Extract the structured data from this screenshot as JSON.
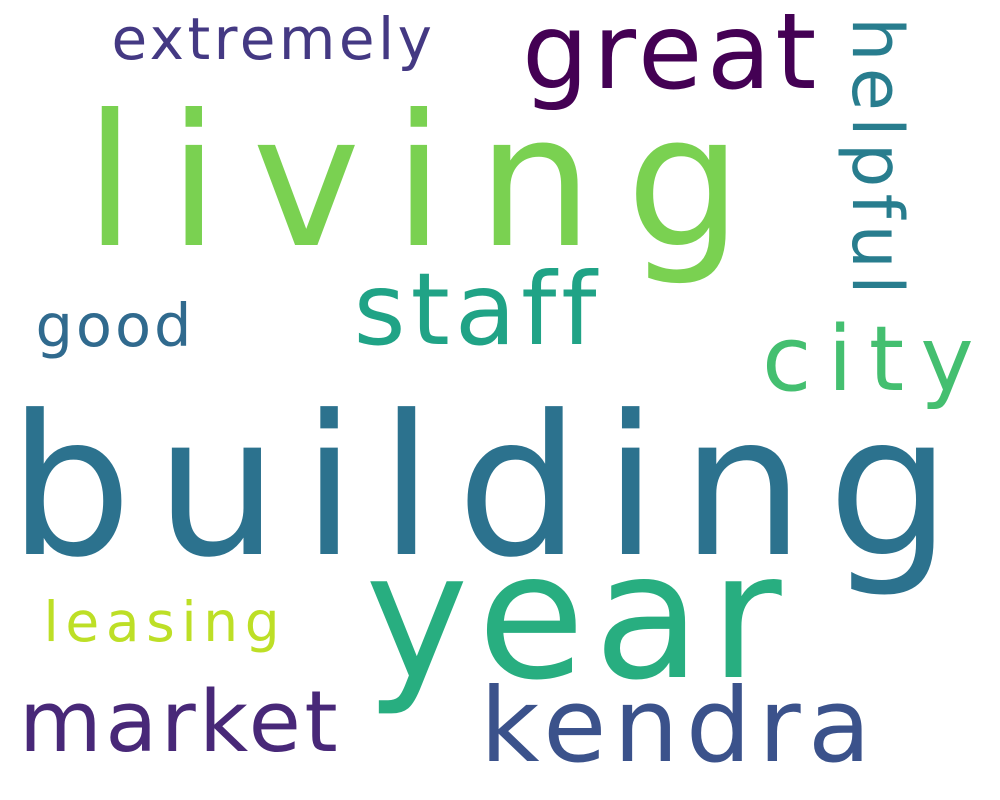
{
  "words": [
    {
      "id": "building",
      "text": "building",
      "color": "#2c728e",
      "orientation": "horizontal"
    },
    {
      "id": "living",
      "text": "living",
      "color": "#7ad151",
      "orientation": "horizontal"
    },
    {
      "id": "year",
      "text": "year",
      "color": "#28ae80",
      "orientation": "horizontal"
    },
    {
      "id": "great",
      "text": "great",
      "color": "#440154",
      "orientation": "horizontal"
    },
    {
      "id": "kendra",
      "text": "kendra",
      "color": "#3b528b",
      "orientation": "horizontal"
    },
    {
      "id": "market",
      "text": "market",
      "color": "#482878",
      "orientation": "horizontal"
    },
    {
      "id": "staff",
      "text": "staff",
      "color": "#20a386",
      "orientation": "horizontal"
    },
    {
      "id": "city",
      "text": "city",
      "color": "#44bf70",
      "orientation": "horizontal"
    },
    {
      "id": "extremely",
      "text": "extremely",
      "color": "#443983",
      "orientation": "horizontal"
    },
    {
      "id": "helpful",
      "text": "helpful",
      "color": "#287d8e",
      "orientation": "vertical"
    },
    {
      "id": "leasing",
      "text": "leasing",
      "color": "#bddf26",
      "orientation": "horizontal"
    },
    {
      "id": "good",
      "text": "good",
      "color": "#306a8e",
      "orientation": "horizontal"
    }
  ]
}
